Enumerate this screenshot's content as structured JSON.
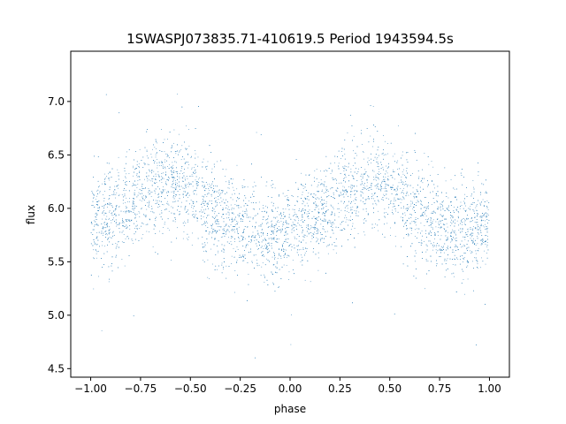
{
  "chart_data": {
    "type": "scatter",
    "title": "1SWASPJ073835.71-410619.5 Period 1943594.5s",
    "xlabel": "phase",
    "ylabel": "flux",
    "xlim": [
      -1.1,
      1.1
    ],
    "ylim": [
      4.42,
      7.47
    ],
    "xticks": [
      -1.0,
      -0.75,
      -0.5,
      -0.25,
      0.0,
      0.25,
      0.5,
      0.75,
      1.0
    ],
    "xtick_labels": [
      "−1.00",
      "−0.75",
      "−0.50",
      "−0.25",
      "0.00",
      "0.25",
      "0.50",
      "0.75",
      "1.00"
    ],
    "yticks": [
      4.5,
      5.0,
      5.5,
      6.0,
      6.5,
      7.0
    ],
    "ytick_labels": [
      "4.5",
      "5.0",
      "5.5",
      "6.0",
      "6.5",
      "7.0"
    ],
    "grid": false,
    "legend": "none",
    "series": [
      {
        "color": "#1f77b4",
        "profile_phase": [
          -1.0,
          -0.9,
          -0.8,
          -0.7,
          -0.6,
          -0.5,
          -0.4,
          -0.3,
          -0.2,
          -0.1,
          0.0,
          0.1,
          0.2,
          0.3,
          0.4,
          0.5,
          0.6,
          0.7,
          0.8,
          0.9,
          1.0
        ],
        "profile_flux": [
          5.85,
          5.9,
          6.02,
          6.2,
          6.25,
          6.2,
          5.98,
          5.85,
          5.78,
          5.72,
          5.8,
          5.88,
          6.0,
          6.18,
          6.24,
          6.2,
          6.0,
          5.88,
          5.8,
          5.8,
          5.85
        ],
        "scatter_sigma": 0.22,
        "flux_min": 4.55,
        "flux_max": 7.38
      }
    ]
  }
}
